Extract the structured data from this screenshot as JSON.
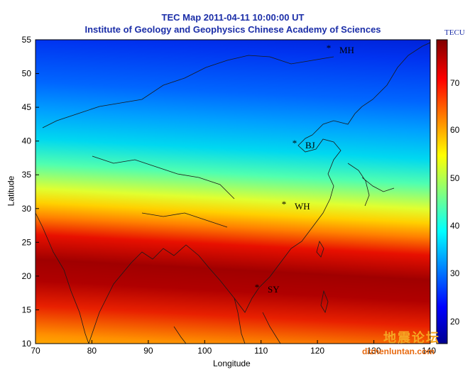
{
  "title": {
    "line1": "TEC Map 2011-04-11 10:00:00 UT",
    "line2": "Institute of Geology and Geophysics Chinese Academy of Sciences"
  },
  "axes": {
    "xlabel": "Longitude",
    "ylabel": "Latitude",
    "xticks": [
      "70",
      "80",
      "90",
      "100",
      "110",
      "120",
      "130",
      "140"
    ],
    "yticks": [
      "55",
      "50",
      "45",
      "40",
      "35",
      "30",
      "25",
      "20",
      "15",
      "10"
    ]
  },
  "colorbar": {
    "unit": "TECU",
    "ticks": [
      "70",
      "60",
      "50",
      "40",
      "30",
      "20"
    ]
  },
  "stations": [
    {
      "name": "MH",
      "lon": 122,
      "lat": 53.5
    },
    {
      "name": "BJ",
      "lon": 116.3,
      "lat": 39.9
    },
    {
      "name": "WH",
      "lon": 114.4,
      "lat": 30.5
    },
    {
      "name": "SY",
      "lon": 109.5,
      "lat": 18.3
    }
  ],
  "watermark": {
    "cn": "地震论坛",
    "url": "dizhenluntan.com"
  },
  "chart_data": {
    "type": "heatmap",
    "title": "TEC Map 2011-04-11 10:00:00 UT",
    "subtitle": "Institute of Geology and Geophysics Chinese Academy of Sciences",
    "xlabel": "Longitude",
    "ylabel": "Latitude",
    "xlim": [
      70,
      140
    ],
    "ylim": [
      10,
      55
    ],
    "colorbar_range": [
      15,
      80
    ],
    "colorbar_unit": "TECU",
    "colormap": "jet",
    "latitude_profile": [
      {
        "lat": 55,
        "tec": 20
      },
      {
        "lat": 50,
        "tec": 24
      },
      {
        "lat": 45,
        "tec": 30
      },
      {
        "lat": 40,
        "tec": 35
      },
      {
        "lat": 35,
        "tec": 45
      },
      {
        "lat": 30,
        "tec": 55
      },
      {
        "lat": 27,
        "tec": 62
      },
      {
        "lat": 24,
        "tec": 72
      },
      {
        "lat": 20,
        "tec": 78
      },
      {
        "lat": 17,
        "tec": 75
      },
      {
        "lat": 13,
        "tec": 68
      },
      {
        "lat": 10,
        "tec": 60
      }
    ]
  }
}
